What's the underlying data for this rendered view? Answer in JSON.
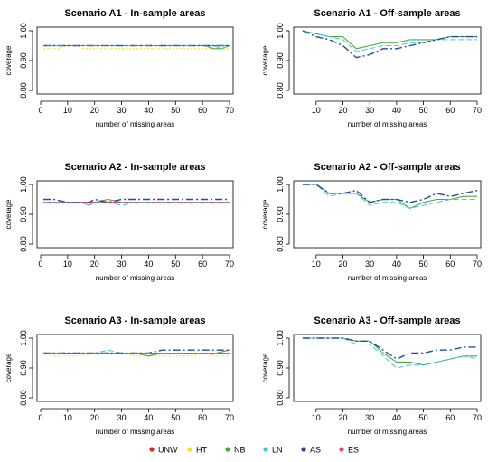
{
  "colors": {
    "UNW": "#e8202a",
    "HT": "#f2e40f",
    "NB": "#4aaa3c",
    "LN": "#45c5e0",
    "AS": "#1f4e9c",
    "ES": "#d9479b"
  },
  "legend": {
    "items": [
      {
        "key": "UNW",
        "label": "UNW"
      },
      {
        "key": "HT",
        "label": "HT"
      },
      {
        "key": "NB",
        "label": "NB"
      },
      {
        "key": "LN",
        "label": "LN"
      },
      {
        "key": "AS",
        "label": "AS"
      },
      {
        "key": "ES",
        "label": "ES"
      }
    ]
  },
  "chart_data": [
    {
      "type": "line",
      "title": "Scenario A1 - In-sample areas",
      "xlabel": "number of missing areas",
      "ylabel": "coverage",
      "xlim": [
        0,
        70
      ],
      "ylim": [
        0.8,
        1.0
      ],
      "xticks": [
        0,
        10,
        20,
        30,
        40,
        50,
        60,
        70
      ],
      "yticks": [
        {
          "v": 0.8,
          "label": "0.80"
        },
        {
          "v": 0.9,
          "label": "0.90"
        },
        {
          "v": 1.0,
          "label": "1.00"
        }
      ],
      "x": [
        1,
        4,
        7,
        10,
        13,
        16,
        19,
        22,
        25,
        28,
        31,
        34,
        37,
        40,
        43,
        46,
        49,
        52,
        55,
        58,
        61,
        64,
        67,
        70
      ],
      "series": [
        {
          "key": "UNW",
          "values": [
            0.95,
            0.95,
            0.95,
            0.95,
            0.95,
            0.95,
            0.95,
            0.95,
            0.95,
            0.95,
            0.95,
            0.95,
            0.95,
            0.95,
            0.95,
            0.95,
            0.95,
            0.95,
            0.95,
            0.95,
            0.95,
            0.95,
            0.95,
            0.95
          ]
        },
        {
          "key": "HT",
          "values": [
            0.94,
            0.94,
            0.94,
            0.95,
            0.95,
            0.94,
            0.94,
            0.94,
            0.94,
            0.94,
            0.94,
            0.94,
            0.94,
            0.94,
            0.94,
            0.94,
            0.94,
            0.94,
            0.94,
            0.94,
            0.94,
            0.94,
            0.94,
            0.94
          ]
        },
        {
          "key": "NB",
          "values": [
            0.95,
            0.95,
            0.95,
            0.95,
            0.95,
            0.95,
            0.95,
            0.95,
            0.95,
            0.95,
            0.95,
            0.95,
            0.95,
            0.95,
            0.95,
            0.95,
            0.95,
            0.95,
            0.95,
            0.95,
            0.95,
            0.94,
            0.94,
            0.95
          ]
        },
        {
          "key": "LN",
          "values": [
            0.95,
            0.95,
            0.95,
            0.95,
            0.95,
            0.95,
            0.95,
            0.95,
            0.95,
            0.95,
            0.95,
            0.95,
            0.95,
            0.95,
            0.95,
            0.95,
            0.95,
            0.95,
            0.95,
            0.95,
            0.95,
            0.95,
            0.94,
            0.95
          ]
        },
        {
          "key": "AS",
          "values": [
            0.95,
            0.95,
            0.95,
            0.95,
            0.95,
            0.95,
            0.95,
            0.95,
            0.95,
            0.95,
            0.95,
            0.95,
            0.95,
            0.95,
            0.95,
            0.95,
            0.95,
            0.95,
            0.95,
            0.95,
            0.95,
            0.95,
            0.95,
            0.95
          ]
        },
        {
          "key": "ES",
          "values": [
            0.95,
            0.95,
            0.95,
            0.95,
            0.95,
            0.95,
            0.95,
            0.95,
            0.95,
            0.95,
            0.95,
            0.95,
            0.95,
            0.95,
            0.95,
            0.95,
            0.95,
            0.95,
            0.95,
            0.95,
            0.95,
            0.95,
            0.95,
            0.95
          ]
        }
      ]
    },
    {
      "type": "line",
      "title": "Scenario A1 - Off-sample areas",
      "xlabel": "number of missing areas",
      "ylabel": "coverage",
      "xlim": [
        3,
        70
      ],
      "ylim": [
        0.8,
        1.0
      ],
      "xticks": [
        10,
        20,
        30,
        40,
        50,
        60,
        70
      ],
      "yticks": [
        {
          "v": 0.8,
          "label": "0.80"
        },
        {
          "v": 0.9,
          "label": "0.90"
        },
        {
          "v": 1.0,
          "label": "1.00"
        }
      ],
      "x": [
        5,
        10,
        15,
        20,
        25,
        30,
        35,
        40,
        45,
        50,
        55,
        60,
        65,
        70
      ],
      "series": [
        {
          "key": "NB",
          "values": [
            1.0,
            0.99,
            0.98,
            0.98,
            0.94,
            0.95,
            0.96,
            0.96,
            0.97,
            0.97,
            0.97,
            0.98,
            0.98,
            0.98
          ]
        },
        {
          "key": "LN",
          "values": [
            1.0,
            0.99,
            0.98,
            0.97,
            0.93,
            0.94,
            0.95,
            0.95,
            0.96,
            0.96,
            0.97,
            0.97,
            0.97,
            0.97
          ]
        },
        {
          "key": "AS",
          "values": [
            1.0,
            0.98,
            0.97,
            0.95,
            0.91,
            0.92,
            0.94,
            0.94,
            0.95,
            0.96,
            0.97,
            0.98,
            0.98,
            0.98
          ]
        }
      ]
    },
    {
      "type": "line",
      "title": "Scenario A2 - In-sample areas",
      "xlabel": "number of missing areas",
      "ylabel": "coverage",
      "xlim": [
        0,
        70
      ],
      "ylim": [
        0.8,
        1.0
      ],
      "xticks": [
        0,
        10,
        20,
        30,
        40,
        50,
        60,
        70
      ],
      "yticks": [
        {
          "v": 0.8,
          "label": "0.80"
        },
        {
          "v": 0.9,
          "label": "0.90"
        },
        {
          "v": 1.0,
          "label": "1.00"
        }
      ],
      "x": [
        1,
        5,
        10,
        15,
        18,
        20,
        25,
        30,
        35,
        40,
        45,
        50,
        55,
        60,
        65,
        70
      ],
      "series": [
        {
          "key": "UNW",
          "values": [
            0.94,
            0.94,
            0.94,
            0.94,
            0.94,
            0.94,
            0.94,
            0.94,
            0.94,
            0.94,
            0.94,
            0.94,
            0.94,
            0.94,
            0.94,
            0.94
          ]
        },
        {
          "key": "HT",
          "values": [
            0.94,
            0.94,
            0.94,
            0.94,
            0.94,
            0.94,
            0.95,
            0.94,
            0.94,
            0.94,
            0.94,
            0.94,
            0.94,
            0.94,
            0.94,
            0.94
          ]
        },
        {
          "key": "NB",
          "values": [
            0.94,
            0.94,
            0.94,
            0.94,
            0.93,
            0.94,
            0.95,
            0.94,
            0.94,
            0.94,
            0.94,
            0.94,
            0.94,
            0.94,
            0.94,
            0.94
          ]
        },
        {
          "key": "LN",
          "values": [
            0.94,
            0.94,
            0.94,
            0.94,
            0.93,
            0.94,
            0.94,
            0.93,
            0.94,
            0.94,
            0.94,
            0.94,
            0.94,
            0.94,
            0.94,
            0.94
          ]
        },
        {
          "key": "AS",
          "values": [
            0.95,
            0.95,
            0.94,
            0.94,
            0.94,
            0.95,
            0.94,
            0.95,
            0.95,
            0.95,
            0.95,
            0.95,
            0.95,
            0.95,
            0.95,
            0.95
          ]
        },
        {
          "key": "ES",
          "values": [
            0.94,
            0.94,
            0.94,
            0.94,
            0.94,
            0.94,
            0.94,
            0.94,
            0.94,
            0.94,
            0.94,
            0.94,
            0.94,
            0.94,
            0.94,
            0.94
          ]
        }
      ]
    },
    {
      "type": "line",
      "title": "Scenario A2 - Off-sample areas",
      "xlabel": "number of missing areas",
      "ylabel": "coverage",
      "xlim": [
        3,
        70
      ],
      "ylim": [
        0.8,
        1.0
      ],
      "xticks": [
        10,
        20,
        30,
        40,
        50,
        60,
        70
      ],
      "yticks": [
        {
          "v": 0.8,
          "label": "0.80"
        },
        {
          "v": 0.9,
          "label": "0.90"
        },
        {
          "v": 1.0,
          "label": "1.00"
        }
      ],
      "x": [
        5,
        10,
        15,
        20,
        25,
        30,
        35,
        40,
        45,
        50,
        55,
        60,
        65,
        70
      ],
      "series": [
        {
          "key": "NB",
          "values": [
            1.0,
            1.0,
            0.97,
            0.97,
            0.97,
            0.94,
            0.95,
            0.95,
            0.92,
            0.94,
            0.95,
            0.95,
            0.96,
            0.96
          ]
        },
        {
          "key": "LN",
          "values": [
            1.0,
            1.0,
            0.96,
            0.97,
            0.97,
            0.93,
            0.94,
            0.94,
            0.92,
            0.93,
            0.94,
            0.95,
            0.95,
            0.95
          ]
        },
        {
          "key": "AS",
          "values": [
            1.0,
            1.0,
            0.97,
            0.97,
            0.98,
            0.94,
            0.95,
            0.95,
            0.94,
            0.95,
            0.97,
            0.96,
            0.97,
            0.98
          ]
        }
      ]
    },
    {
      "type": "line",
      "title": "Scenario A3 - In-sample areas",
      "xlabel": "number of missing areas",
      "ylabel": "coverage",
      "xlim": [
        0,
        70
      ],
      "ylim": [
        0.8,
        1.0
      ],
      "xticks": [
        0,
        10,
        20,
        30,
        40,
        50,
        60,
        70
      ],
      "yticks": [
        {
          "v": 0.8,
          "label": "0.80"
        },
        {
          "v": 0.9,
          "label": "0.90"
        },
        {
          "v": 1.0,
          "label": "1.00"
        }
      ],
      "x": [
        1,
        5,
        10,
        15,
        20,
        25,
        30,
        35,
        40,
        45,
        50,
        55,
        60,
        65,
        70
      ],
      "series": [
        {
          "key": "UNW",
          "values": [
            0.95,
            0.95,
            0.95,
            0.95,
            0.95,
            0.95,
            0.95,
            0.95,
            0.95,
            0.95,
            0.95,
            0.95,
            0.95,
            0.95,
            0.95
          ]
        },
        {
          "key": "HT",
          "values": [
            0.95,
            0.94,
            0.94,
            0.94,
            0.95,
            0.95,
            0.95,
            0.94,
            0.94,
            0.94,
            0.94,
            0.94,
            0.95,
            0.94,
            0.94
          ]
        },
        {
          "key": "NB",
          "values": [
            0.95,
            0.95,
            0.95,
            0.95,
            0.95,
            0.95,
            0.95,
            0.95,
            0.94,
            0.95,
            0.95,
            0.95,
            0.95,
            0.95,
            0.96
          ]
        },
        {
          "key": "LN",
          "values": [
            0.95,
            0.95,
            0.95,
            0.95,
            0.95,
            0.96,
            0.95,
            0.95,
            0.95,
            0.95,
            0.95,
            0.95,
            0.95,
            0.95,
            0.95
          ]
        },
        {
          "key": "AS",
          "values": [
            0.95,
            0.95,
            0.95,
            0.95,
            0.95,
            0.95,
            0.95,
            0.95,
            0.95,
            0.96,
            0.96,
            0.96,
            0.96,
            0.96,
            0.96
          ]
        },
        {
          "key": "ES",
          "values": [
            0.95,
            0.95,
            0.95,
            0.95,
            0.95,
            0.95,
            0.95,
            0.95,
            0.95,
            0.95,
            0.95,
            0.95,
            0.95,
            0.95,
            0.95
          ]
        }
      ]
    },
    {
      "type": "line",
      "title": "Scenario A3 - Off-sample areas",
      "xlabel": "number of missing areas",
      "ylabel": "coverage",
      "xlim": [
        3,
        70
      ],
      "ylim": [
        0.8,
        1.0
      ],
      "xticks": [
        10,
        20,
        30,
        40,
        50,
        60,
        70
      ],
      "yticks": [
        {
          "v": 0.8,
          "label": "0.80"
        },
        {
          "v": 0.9,
          "label": "0.90"
        },
        {
          "v": 1.0,
          "label": "1.00"
        }
      ],
      "x": [
        5,
        10,
        15,
        20,
        25,
        30,
        35,
        40,
        45,
        50,
        55,
        60,
        65,
        70
      ],
      "series": [
        {
          "key": "NB",
          "values": [
            1.0,
            1.0,
            1.0,
            1.0,
            0.99,
            0.99,
            0.95,
            0.92,
            0.92,
            0.91,
            0.92,
            0.93,
            0.94,
            0.94
          ]
        },
        {
          "key": "LN",
          "values": [
            1.0,
            1.0,
            1.0,
            1.0,
            0.98,
            0.98,
            0.94,
            0.9,
            0.91,
            0.91,
            0.92,
            0.93,
            0.94,
            0.93
          ]
        },
        {
          "key": "AS",
          "values": [
            1.0,
            1.0,
            1.0,
            1.0,
            0.99,
            0.99,
            0.96,
            0.93,
            0.95,
            0.95,
            0.96,
            0.96,
            0.97,
            0.97
          ]
        }
      ]
    }
  ]
}
